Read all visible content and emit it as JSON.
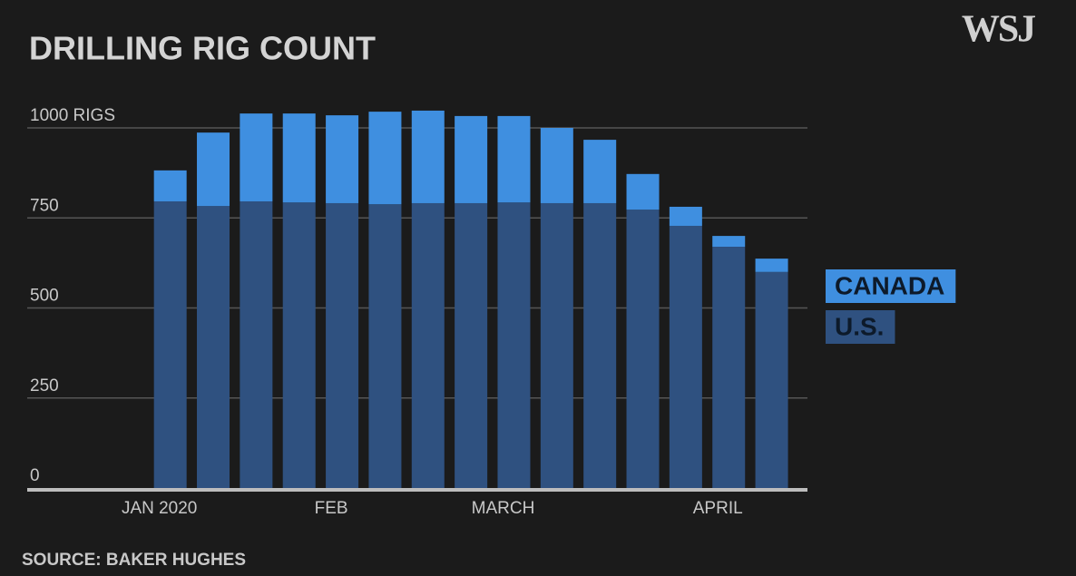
{
  "chart_data": {
    "type": "stacked_bar",
    "title": "DRILLING RIG COUNT",
    "logo": "WSJ",
    "source": "SOURCE: BAKER HUGHES",
    "categories": [
      "JAN 2020",
      null,
      null,
      null,
      "FEB",
      null,
      null,
      null,
      "MARCH",
      null,
      null,
      null,
      null,
      "APRIL",
      null
    ],
    "series": [
      {
        "name": "U.S.",
        "color": "#2f5180",
        "values": [
          796,
          783,
          796,
          793,
          791,
          788,
          791,
          791,
          793,
          791,
          791,
          773,
          728,
          670,
          600
        ]
      },
      {
        "name": "CANADA",
        "color": "#3f8fe0",
        "values": [
          86,
          204,
          244,
          247,
          244,
          257,
          257,
          242,
          240,
          209,
          176,
          99,
          53,
          30,
          37
        ]
      }
    ],
    "ylim": [
      0,
      1000
    ],
    "yticks": [
      0,
      250,
      500,
      750,
      {
        "value": 1000,
        "label": "1000 RIGS"
      }
    ],
    "grid": true
  }
}
